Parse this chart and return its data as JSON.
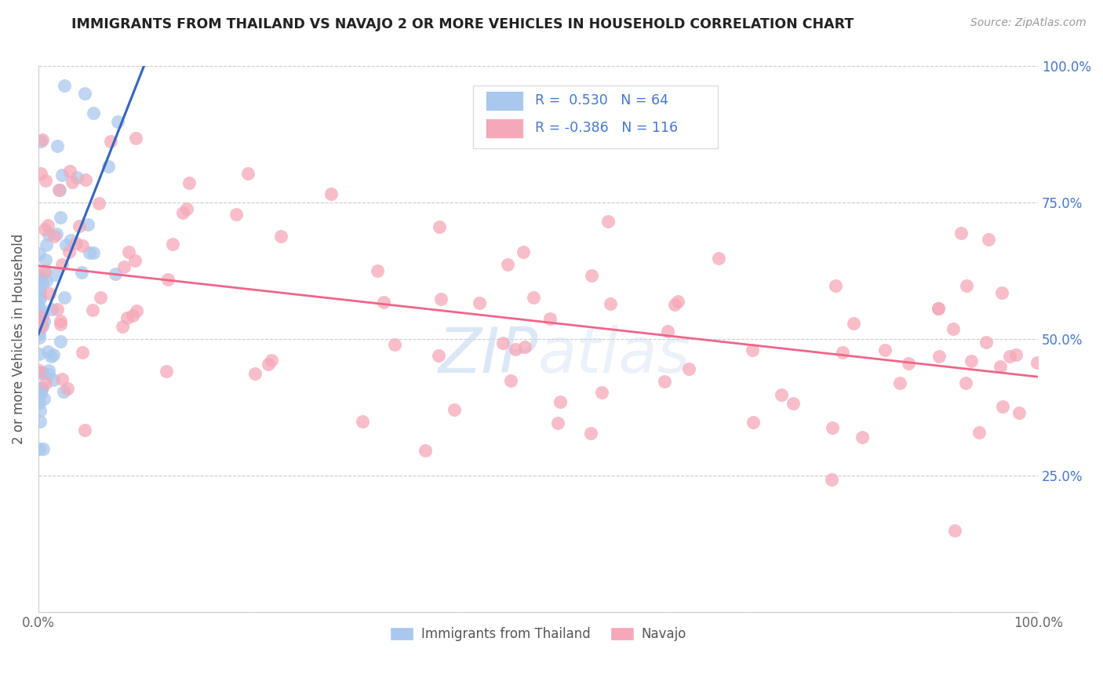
{
  "title": "IMMIGRANTS FROM THAILAND VS NAVAJO 2 OR MORE VEHICLES IN HOUSEHOLD CORRELATION CHART",
  "source": "Source: ZipAtlas.com",
  "ylabel": "2 or more Vehicles in Household",
  "xmin": 0.0,
  "xmax": 1.0,
  "ymin": 0.0,
  "ymax": 1.0,
  "legend_label1": "Immigrants from Thailand",
  "legend_label2": "Navajo",
  "r1": 0.53,
  "n1": 64,
  "r2": -0.386,
  "n2": 116,
  "color_blue": "#aac8ed",
  "color_pink": "#f5a8b8",
  "line_color_blue": "#3366bb",
  "line_color_pink": "#ee6688",
  "background_color": "#ffffff",
  "grid_color": "#cccccc",
  "title_color": "#222222",
  "source_color": "#999999",
  "right_tick_color": "#4477cc",
  "watermark_color": "#c5d8f0",
  "seed": 17
}
